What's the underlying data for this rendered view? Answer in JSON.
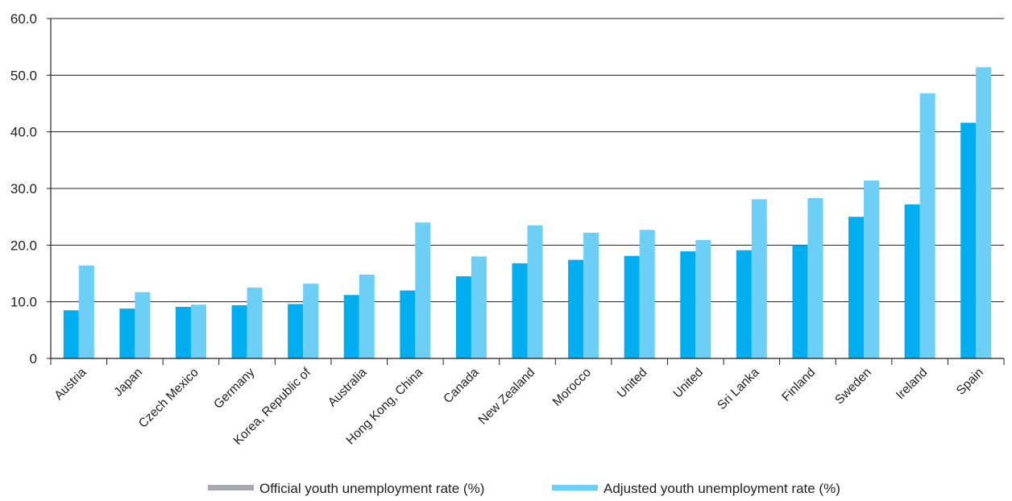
{
  "chart_data": {
    "type": "bar",
    "title": "",
    "xlabel": "",
    "ylabel": "",
    "ylim": [
      0,
      60
    ],
    "yticks": [
      0,
      10,
      20,
      30,
      40,
      50,
      60
    ],
    "ytick_labels": [
      "0",
      "10.0",
      "20.0",
      "30.0",
      "40.0",
      "50.0",
      "60.0"
    ],
    "grid": true,
    "legend_position": "bottom",
    "categories": [
      "Austria",
      "Japan",
      "Czech Mexico",
      "Germany",
      "Korea, Republic of",
      "Australia",
      "Hong Kong, China",
      "Canada",
      "New Zealand",
      "Morocco",
      "United",
      "United",
      "Sri Lanka",
      "Finland",
      "Sweden",
      "Ireland",
      "Spain"
    ],
    "series": [
      {
        "name": "Official youth unemployment rate (%)",
        "color": "#00aeef",
        "legend_color": "#a7a9ac",
        "values": [
          8.5,
          8.8,
          9.1,
          9.4,
          9.6,
          11.2,
          12.0,
          14.5,
          16.8,
          17.4,
          18.1,
          18.9,
          19.1,
          20.0,
          25.0,
          27.2,
          41.6
        ]
      },
      {
        "name": "Adjusted youth unemployment rate (%)",
        "color": "#6dcff6",
        "legend_color": "#6dcff6",
        "values": [
          16.4,
          11.7,
          9.5,
          12.5,
          13.2,
          14.8,
          24.0,
          18.0,
          23.5,
          22.2,
          22.7,
          20.9,
          28.1,
          28.3,
          31.4,
          46.8,
          51.4
        ]
      }
    ]
  }
}
